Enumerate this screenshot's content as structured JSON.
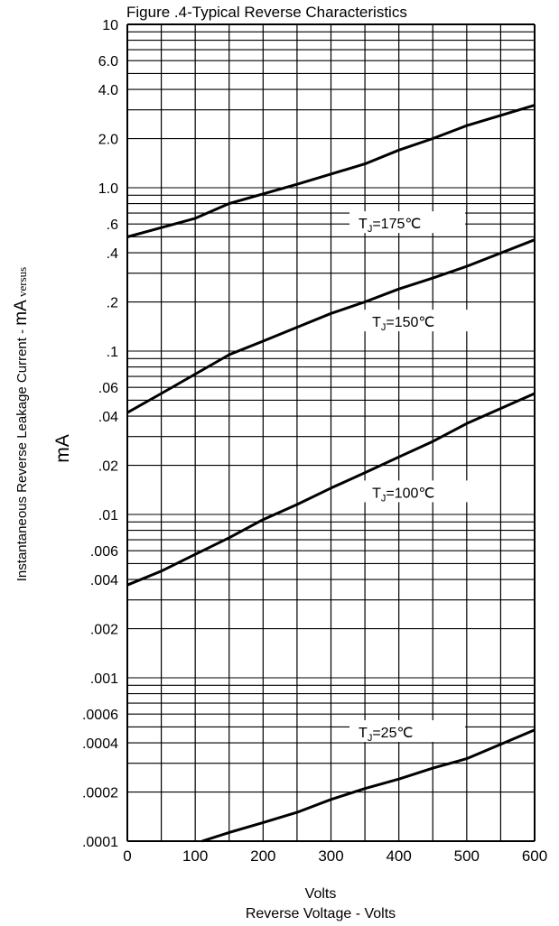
{
  "chart_data": {
    "type": "line",
    "title": "Figure .4-Typical Reverse Characteristics",
    "ylabel_main": "Instantaneous Reverse Leakage Current - ",
    "ylabel_unit_big": "mA",
    "ylabel_suffix": " versus",
    "y_unit_label": "mA",
    "xlabel": "Volts",
    "xlabel2": "Reverse Voltage - Volts",
    "x_scale": "linear",
    "y_scale": "log",
    "xlim": [
      0,
      600
    ],
    "ylim": [
      0.0001,
      10
    ],
    "x_ticks": [
      0,
      100,
      200,
      300,
      400,
      500,
      600
    ],
    "x_tick_labels": [
      "0",
      "100",
      "200",
      "300",
      "400",
      "500",
      "600"
    ],
    "y_tick_labels": [
      {
        "value": 10,
        "label": "10"
      },
      {
        "value": 6,
        "label": "6.0"
      },
      {
        "value": 4,
        "label": "4.0"
      },
      {
        "value": 2,
        "label": "2.0"
      },
      {
        "value": 1,
        "label": "1.0"
      },
      {
        "value": 0.6,
        "label": ".6"
      },
      {
        "value": 0.4,
        "label": ".4"
      },
      {
        "value": 0.2,
        "label": ".2"
      },
      {
        "value": 0.1,
        "label": ".1"
      },
      {
        "value": 0.06,
        "label": ".06"
      },
      {
        "value": 0.04,
        "label": ".04"
      },
      {
        "value": 0.02,
        "label": ".02"
      },
      {
        "value": 0.01,
        "label": ".01"
      },
      {
        "value": 0.006,
        "label": ".006"
      },
      {
        "value": 0.004,
        "label": ".004"
      },
      {
        "value": 0.002,
        "label": ".002"
      },
      {
        "value": 0.001,
        "label": ".001"
      },
      {
        "value": 0.0006,
        "label": ".0006"
      },
      {
        "value": 0.0004,
        "label": ".0004"
      },
      {
        "value": 0.0002,
        "label": ".0002"
      },
      {
        "value": 0.0001,
        "label": ".0001"
      }
    ],
    "grid": true,
    "series": [
      {
        "name": "TJ=175℃",
        "label_main": "T",
        "label_sub": "J",
        "label_rest": "=175℃",
        "label_at": [
          330,
          0.6
        ],
        "x": [
          0,
          100,
          150,
          250,
          350,
          400,
          450,
          500,
          600
        ],
        "y": [
          0.5,
          0.65,
          0.8,
          1.05,
          1.4,
          1.7,
          2.0,
          2.4,
          3.2
        ]
      },
      {
        "name": "TJ=150℃",
        "label_main": "T",
        "label_sub": "J",
        "label_rest": "=150℃",
        "label_at": [
          350,
          0.15
        ],
        "x": [
          0,
          50,
          150,
          200,
          250,
          300,
          350,
          400,
          450,
          500,
          600
        ],
        "y": [
          0.042,
          0.055,
          0.095,
          0.115,
          0.14,
          0.17,
          0.2,
          0.24,
          0.28,
          0.33,
          0.48
        ]
      },
      {
        "name": "TJ=100℃",
        "label_main": "T",
        "label_sub": "J",
        "label_rest": "=100℃",
        "label_at": [
          350,
          0.0135
        ],
        "x": [
          0,
          50,
          100,
          150,
          200,
          250,
          300,
          350,
          400,
          450,
          500,
          600
        ],
        "y": [
          0.0037,
          0.0045,
          0.0057,
          0.0072,
          0.0093,
          0.0115,
          0.0145,
          0.018,
          0.0225,
          0.028,
          0.036,
          0.055
        ]
      },
      {
        "name": "TJ=25℃",
        "label_main": "T",
        "label_sub": "J",
        "label_rest": "=25℃",
        "label_at": [
          330,
          0.00046
        ],
        "x": [
          110,
          150,
          200,
          250,
          300,
          350,
          400,
          450,
          500,
          600
        ],
        "y": [
          0.0001,
          0.000113,
          0.00013,
          0.00015,
          0.00018,
          0.00021,
          0.00024,
          0.00028,
          0.00032,
          0.00048
        ]
      }
    ]
  }
}
